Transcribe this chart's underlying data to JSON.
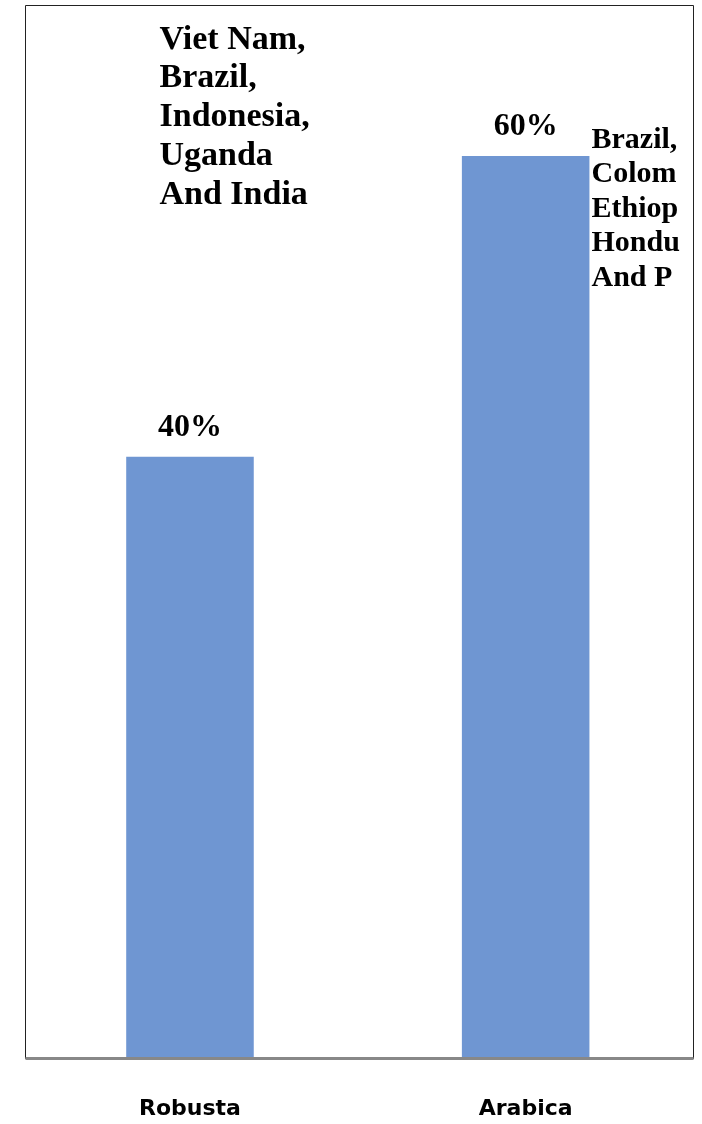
{
  "chart_data": {
    "type": "bar",
    "categories": [
      "Robusta",
      "Arabica"
    ],
    "values": [
      40,
      60
    ],
    "value_labels": [
      "40%",
      "60%"
    ],
    "color": "#6f96d2",
    "grid": false,
    "annotations": [
      "Viet Nam,\nBrazil,\nIndonesia,\nUganda\nAnd India",
      "Brazil,\nColom\nEthiop\nHondu\nAnd P"
    ]
  }
}
